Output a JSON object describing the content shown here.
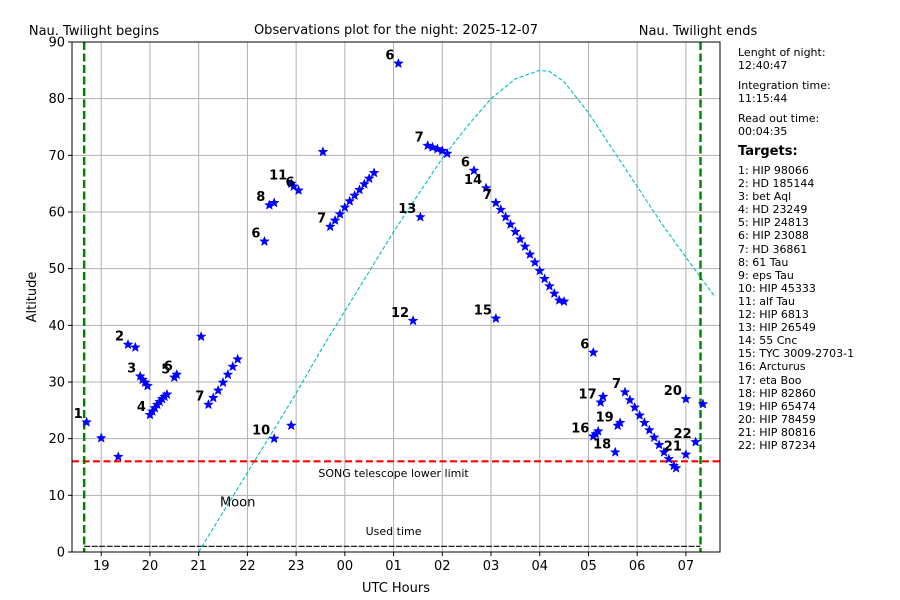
{
  "chart_data": {
    "type": "scatter",
    "title": "Observations plot for the night: 2025-12-07",
    "xlabel": "UTC Hours",
    "ylabel": "Altitude",
    "xlim": [
      18.4,
      31.7
    ],
    "ylim": [
      0,
      90
    ],
    "grid": true,
    "xtick_values": [
      19,
      20,
      21,
      22,
      23,
      24,
      25,
      26,
      27,
      28,
      29,
      30,
      31
    ],
    "xtick_labels": [
      "19",
      "20",
      "21",
      "22",
      "23",
      "00",
      "01",
      "02",
      "03",
      "04",
      "05",
      "06",
      "07"
    ],
    "ytick_values": [
      0,
      10,
      20,
      30,
      40,
      50,
      60,
      70,
      80,
      90
    ],
    "ytick_labels": [
      "0",
      "10",
      "20",
      "30",
      "40",
      "50",
      "60",
      "70",
      "80",
      "90"
    ],
    "twilight": {
      "begin_x": 18.65,
      "begin_label": "Nau. Twilight begins",
      "end_x": 31.3,
      "end_label": "Nau. Twilight ends",
      "color": "#008000"
    },
    "lower_limit": {
      "y": 16,
      "label": "SONG telescope lower limit",
      "color": "#ff0000"
    },
    "moon": {
      "label": "Moon",
      "color": "#00bfbf",
      "x": [
        21.0,
        21.5,
        22.0,
        22.5,
        23.0,
        23.5,
        24.0,
        24.5,
        25.0,
        25.5,
        26.0,
        26.5,
        27.0,
        27.5,
        28.0,
        28.2,
        28.5,
        29.0,
        29.5,
        30.0,
        30.5,
        31.0,
        31.3,
        31.6
      ],
      "y": [
        0,
        7,
        14,
        21,
        28,
        35.5,
        42.5,
        49.5,
        56.5,
        63,
        69.5,
        75,
        80,
        83.5,
        85,
        84.8,
        83,
        77.5,
        71,
        64.5,
        58,
        52,
        48.5,
        45
      ]
    },
    "used_time": {
      "label": "Used time",
      "y": 1,
      "segments": [
        [
          18.65,
          21.05
        ],
        [
          21.05,
          23.0
        ],
        [
          23.05,
          31.3
        ]
      ]
    },
    "marker_color": "#0000ff",
    "series": [
      {
        "label": "1",
        "x": [
          18.7
        ],
        "y": [
          22.9
        ]
      },
      {
        "label": "",
        "x": [
          19.0
        ],
        "y": [
          20.1
        ]
      },
      {
        "label": "",
        "x": [
          19.35
        ],
        "y": [
          16.8
        ]
      },
      {
        "label": "2",
        "x": [
          19.55,
          19.7
        ],
        "y": [
          36.6,
          36.1
        ]
      },
      {
        "label": "3",
        "x": [
          19.8,
          19.85,
          19.9,
          19.95
        ],
        "y": [
          31.0,
          30.4,
          29.9,
          29.3
        ]
      },
      {
        "label": "4",
        "x": [
          20.0,
          20.05,
          20.1,
          20.15,
          20.2,
          20.25,
          20.3,
          20.35
        ],
        "y": [
          24.2,
          24.8,
          25.4,
          26.0,
          26.5,
          27.0,
          27.4,
          27.8
        ]
      },
      {
        "label": "5",
        "x": [
          20.5
        ],
        "y": [
          30.8
        ]
      },
      {
        "label": "6",
        "x": [
          20.55
        ],
        "y": [
          31.3
        ]
      },
      {
        "label": "",
        "x": [
          21.05
        ],
        "y": [
          38.0
        ]
      },
      {
        "label": "7",
        "x": [
          21.2,
          21.3,
          21.4,
          21.5,
          21.6,
          21.7,
          21.8
        ],
        "y": [
          26.0,
          27.2,
          28.5,
          29.9,
          31.3,
          32.7,
          34.0
        ]
      },
      {
        "label": "6",
        "x": [
          22.35
        ],
        "y": [
          54.8
        ]
      },
      {
        "label": "8",
        "x": [
          22.45,
          22.55
        ],
        "y": [
          61.2,
          61.6
        ]
      },
      {
        "label": "10",
        "x": [
          22.55
        ],
        "y": [
          20.0
        ]
      },
      {
        "label": "11",
        "x": [
          22.9,
          22.95
        ],
        "y": [
          65.0,
          64.5
        ]
      },
      {
        "label": "6",
        "x": [
          23.05
        ],
        "y": [
          63.8
        ]
      },
      {
        "label": "",
        "x": [
          22.9
        ],
        "y": [
          22.3
        ]
      },
      {
        "label": "",
        "x": [
          23.55
        ],
        "y": [
          70.6
        ]
      },
      {
        "label": "7",
        "x": [
          23.7,
          23.8,
          23.9,
          24.0,
          24.1,
          24.2,
          24.3,
          24.4,
          24.5,
          24.6
        ],
        "y": [
          57.4,
          58.5,
          59.6,
          60.8,
          61.9,
          62.9,
          63.9,
          64.9,
          65.9,
          66.9
        ]
      },
      {
        "label": "6",
        "x": [
          25.1
        ],
        "y": [
          86.2
        ]
      },
      {
        "label": "12",
        "x": [
          25.4
        ],
        "y": [
          40.8
        ]
      },
      {
        "label": "13",
        "x": [
          25.55
        ],
        "y": [
          59.1
        ]
      },
      {
        "label": "7",
        "x": [
          25.7,
          25.8,
          25.9,
          26.0,
          26.1
        ],
        "y": [
          71.7,
          71.4,
          71.1,
          70.8,
          70.3
        ]
      },
      {
        "label": "6",
        "x": [
          26.65
        ],
        "y": [
          67.3
        ]
      },
      {
        "label": "14",
        "x": [
          26.9
        ],
        "y": [
          64.2
        ]
      },
      {
        "label": "15",
        "x": [
          27.1
        ],
        "y": [
          41.2
        ]
      },
      {
        "label": "7",
        "x": [
          27.1,
          27.2,
          27.3,
          27.4,
          27.5,
          27.6,
          27.7,
          27.8,
          27.9,
          28.0,
          28.1,
          28.2,
          28.3,
          28.4,
          28.5
        ],
        "y": [
          61.6,
          60.4,
          59.1,
          57.8,
          56.5,
          55.2,
          53.9,
          52.5,
          51.1,
          49.6,
          48.2,
          46.9,
          45.6,
          44.4,
          44.2
        ]
      },
      {
        "label": "6",
        "x": [
          29.1
        ],
        "y": [
          35.2
        ]
      },
      {
        "label": "17",
        "x": [
          29.25,
          29.3
        ],
        "y": [
          26.4,
          27.4
        ]
      },
      {
        "label": "16",
        "x": [
          29.1,
          29.15,
          29.2
        ],
        "y": [
          20.4,
          20.8,
          21.3
        ]
      },
      {
        "label": "19",
        "x": [
          29.6,
          29.65
        ],
        "y": [
          22.3,
          22.8
        ]
      },
      {
        "label": "18",
        "x": [
          29.55
        ],
        "y": [
          17.6
        ]
      },
      {
        "label": "7",
        "x": [
          29.75,
          29.85,
          29.95,
          30.05,
          30.15,
          30.25,
          30.35,
          30.45,
          30.55,
          30.65,
          30.75,
          30.8
        ],
        "y": [
          28.2,
          26.8,
          25.5,
          24.1,
          22.8,
          21.5,
          20.2,
          18.9,
          17.6,
          16.4,
          15.2,
          14.8
        ]
      },
      {
        "label": "21",
        "x": [
          31.0
        ],
        "y": [
          17.2
        ]
      },
      {
        "label": "20",
        "x": [
          31.0
        ],
        "y": [
          27.0
        ]
      },
      {
        "label": "22",
        "x": [
          31.2,
          31.35
        ],
        "y": [
          19.4,
          26.1
        ]
      }
    ]
  },
  "info": {
    "length_label": "Lenght of night:",
    "length_value": "12:40:47",
    "integration_label": "Integration time:",
    "integration_value": "11:15:44",
    "readout_label": "Read out time:",
    "readout_value": "00:04:35",
    "targets_header": "Targets:",
    "targets": [
      "1: HIP 98066",
      "2: HD 185144",
      "3: bet Aql",
      "4: HD 23249",
      "5: HIP 24813",
      "6: HIP 23088",
      "7: HD 36861",
      "8: 61 Tau",
      "9: eps Tau",
      "10: HIP 45333",
      "11: alf Tau",
      "12: HIP 6813",
      "13: HIP 26549",
      "14: 55 Cnc",
      "15: TYC 3009-2703-1",
      "16: Arcturus",
      "17: eta Boo",
      "18: HIP 82860",
      "19: HIP 65474",
      "20: HIP 78459",
      "21: HIP 80816",
      "22: HIP 87234"
    ]
  }
}
